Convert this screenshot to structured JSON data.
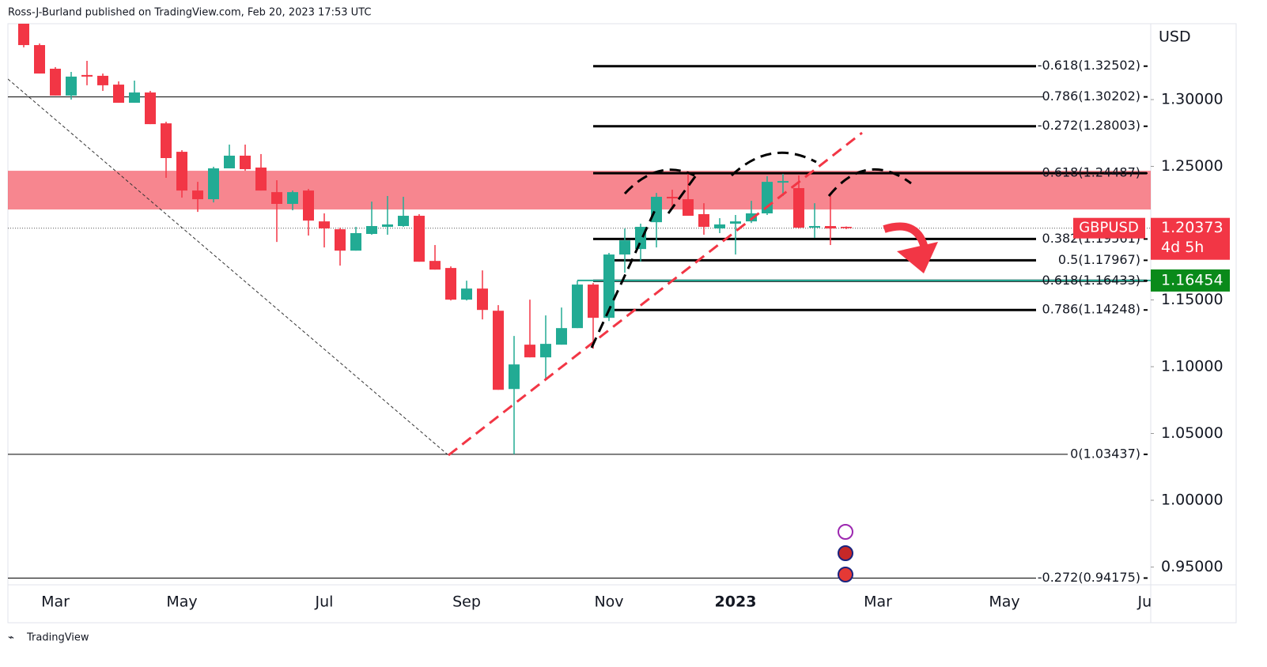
{
  "header": "Ross-J-Burland published on TradingView.com, Feb 20, 2023 17:53 UTC",
  "footer": "TradingView",
  "chart_data": {
    "type": "candlestick",
    "currency": "USD",
    "symbol": "GBPUSD",
    "up_color": "#22ab94",
    "down_color": "#f23645",
    "categories": [
      null,
      null,
      "Mar",
      null,
      null,
      null,
      null,
      null,
      null,
      null,
      "May",
      null,
      null,
      null,
      null,
      null,
      null,
      null,
      null,
      "Jul",
      null,
      null,
      null,
      null,
      null,
      null,
      null,
      null,
      "Sep",
      null,
      null,
      null,
      null,
      null,
      null,
      null,
      null,
      "Nov",
      null,
      null,
      null,
      null,
      null,
      null,
      null,
      "2023",
      null,
      null,
      null,
      null,
      null,
      null,
      null,
      null,
      "Mar",
      null,
      null,
      null,
      null,
      null,
      null,
      null,
      "May",
      null,
      null,
      null,
      null,
      null,
      null,
      null,
      null,
      "Jul"
    ],
    "open": [
      1.3568,
      1.3408,
      1.3231,
      1.303,
      1.3184,
      1.3178,
      1.3112,
      1.2976,
      1.3053,
      1.2822,
      1.2609,
      1.2319,
      1.2254,
      1.2485,
      1.258,
      1.2491,
      1.2307,
      1.2219,
      1.2319,
      1.2088,
      1.2029,
      1.1869,
      1.1994,
      1.2047,
      1.2053,
      1.213,
      1.1792,
      1.1739,
      1.1502,
      1.1585,
      1.1419,
      1.0833,
      1.1165,
      1.107,
      1.1165,
      1.1289,
      1.1615,
      1.1366,
      1.184,
      1.1881,
      1.2082,
      1.2272,
      1.2254,
      1.2142,
      1.2035,
      1.2071,
      1.2088,
      1.2148,
      1.2378,
      1.2337,
      1.2041,
      1.2053,
      1.2047,
      null,
      null,
      null,
      null,
      null,
      null,
      null,
      null,
      null,
      null,
      null,
      null,
      null,
      null,
      null,
      null,
      null,
      null,
      null
    ],
    "high": [
      1.358,
      1.342,
      1.3243,
      1.3207,
      1.329,
      1.3195,
      1.3136,
      1.3142,
      1.3065,
      1.2834,
      1.2621,
      1.2384,
      1.2497,
      1.2663,
      1.2663,
      1.2592,
      1.2396,
      1.2319,
      1.2331,
      1.2148,
      1.2041,
      1.2047,
      1.2236,
      1.2278,
      1.2272,
      1.2142,
      1.1911,
      1.1751,
      1.1644,
      1.1721,
      1.1461,
      1.123,
      1.1502,
      1.1384,
      1.1443,
      1.1644,
      1.1627,
      1.1852,
      1.2035,
      1.2071,
      1.2301,
      1.2325,
      1.2461,
      1.2224,
      1.2112,
      1.2136,
      1.2242,
      1.2426,
      1.2444,
      1.2432,
      1.2224,
      1.2278,
      1.205,
      null,
      null,
      null,
      null,
      null,
      null,
      null,
      null,
      null,
      null,
      null,
      null,
      null,
      null,
      null,
      null,
      null,
      null,
      null
    ],
    "low": [
      1.3391,
      1.3195,
      1.303,
      1.3,
      1.3107,
      1.3065,
      1.2976,
      1.2976,
      1.2816,
      1.2414,
      1.2266,
      1.2159,
      1.223,
      1.2485,
      1.2467,
      1.2319,
      1.1934,
      1.2171,
      1.1982,
      1.1893,
      1.1757,
      1.1869,
      1.1988,
      1.1988,
      1.2047,
      1.1786,
      1.1727,
      1.1496,
      1.1496,
      1.1354,
      1.0827,
      1.0344,
      1.107,
      1.091,
      1.1165,
      1.1289,
      1.1135,
      1.1342,
      1.1704,
      1.1786,
      1.1893,
      1.2189,
      1.213,
      1.1988,
      1.2,
      1.184,
      1.2076,
      1.2136,
      1.2278,
      1.2035,
      1.1964,
      1.1911,
      1.203,
      null,
      null,
      null,
      null,
      null,
      null,
      null,
      null,
      null,
      null,
      null,
      null,
      null,
      null,
      null,
      null,
      null,
      null,
      null
    ],
    "close": [
      1.3408,
      1.3195,
      1.303,
      1.3172,
      1.3172,
      1.3107,
      1.2976,
      1.3053,
      1.2816,
      1.2562,
      1.2319,
      1.2254,
      1.2485,
      1.258,
      1.2479,
      1.2319,
      1.2219,
      1.2307,
      1.2094,
      1.2035,
      1.1869,
      1.2,
      1.2053,
      1.2065,
      1.213,
      1.1786,
      1.1727,
      1.1502,
      1.1585,
      1.1425,
      1.0827,
      1.1017,
      1.107,
      1.1171,
      1.1289,
      1.1615,
      1.1366,
      1.184,
      1.1946,
      1.2047,
      1.2272,
      1.226,
      1.213,
      1.2047,
      1.2065,
      1.2088,
      1.2148,
      1.2384,
      1.239,
      1.2041,
      1.2053,
      1.2035,
      1.2037,
      null,
      null,
      null,
      null,
      null,
      null,
      null,
      null,
      null,
      null,
      null,
      null,
      null,
      null,
      null,
      null,
      null,
      null,
      null
    ],
    "ylim": [
      0.9367,
      1.3568
    ],
    "yticks": [
      {
        "value": 1.3,
        "label": "1.30000"
      },
      {
        "value": 1.25,
        "label": "1.25000"
      },
      {
        "value": 1.15,
        "label": "1.15000"
      },
      {
        "value": 1.1,
        "label": "1.10000"
      },
      {
        "value": 1.05,
        "label": "1.05000"
      },
      {
        "value": 1.0,
        "label": "1.00000"
      },
      {
        "value": 0.95,
        "label": "0.95000"
      }
    ],
    "last_price": 1.20373,
    "countdown": "4d 5h",
    "marked_price": 1.16454,
    "zone": [
      1.2177,
      1.2467
    ],
    "fib_levels": [
      {
        "label": "-0.618(1.32502)",
        "value": 1.32502
      },
      {
        "label": "0.786(1.30202)",
        "value": 1.30202
      },
      {
        "label": "-0.272(1.28003)",
        "value": 1.28003
      },
      {
        "label": "0.618(1.24487)",
        "value": 1.24487
      },
      {
        "label": "0.382(1.19561)",
        "value": 1.19561
      },
      {
        "label": "0.5(1.17967)",
        "value": 1.17967
      },
      {
        "label": "0.618(1.16433)",
        "value": 1.16433
      },
      {
        "label": "0.786(1.14248)",
        "value": 1.14248
      },
      {
        "label": "0(1.03437)",
        "value": 1.03437
      },
      {
        "label": "-0.272(0.94175)",
        "value": 0.94175
      }
    ]
  }
}
